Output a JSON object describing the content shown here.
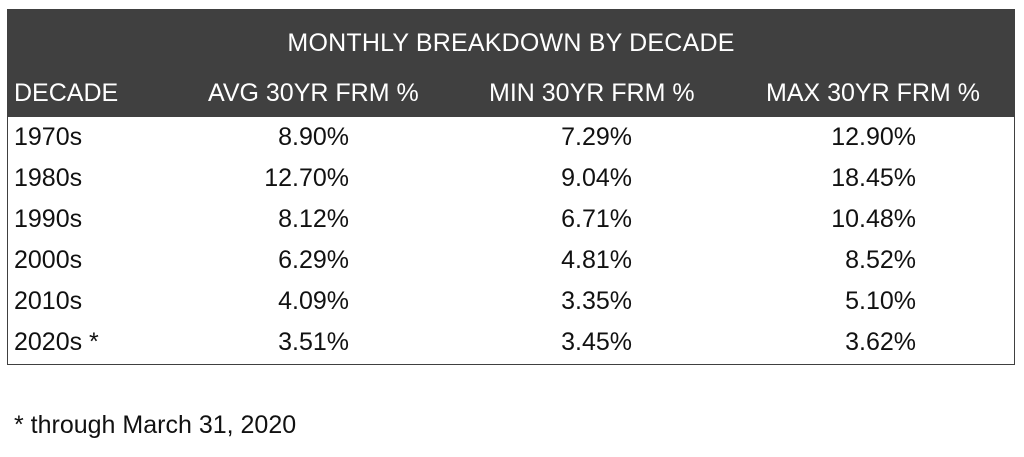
{
  "table": {
    "title": "MONTHLY BREAKDOWN BY DECADE",
    "columns": [
      "DECADE",
      "AVG 30YR FRM %",
      "MIN 30YR FRM %",
      "MAX 30YR FRM %"
    ],
    "rows": [
      {
        "decade": "1970s",
        "avg": "8.90%",
        "min": "7.29%",
        "max": "12.90%"
      },
      {
        "decade": "1980s",
        "avg": "12.70%",
        "min": "9.04%",
        "max": "18.45%"
      },
      {
        "decade": "1990s",
        "avg": "8.12%",
        "min": "6.71%",
        "max": "10.48%"
      },
      {
        "decade": "2000s",
        "avg": "6.29%",
        "min": "4.81%",
        "max": "8.52%"
      },
      {
        "decade": "2010s",
        "avg": "4.09%",
        "min": "3.35%",
        "max": "5.10%"
      },
      {
        "decade": "2020s *",
        "avg": "3.51%",
        "min": "3.45%",
        "max": "3.62%"
      }
    ]
  },
  "footnote": "* through March 31, 2020",
  "colors": {
    "header_background": "#404040",
    "header_text": "#ffffff",
    "body_text": "#111111"
  }
}
